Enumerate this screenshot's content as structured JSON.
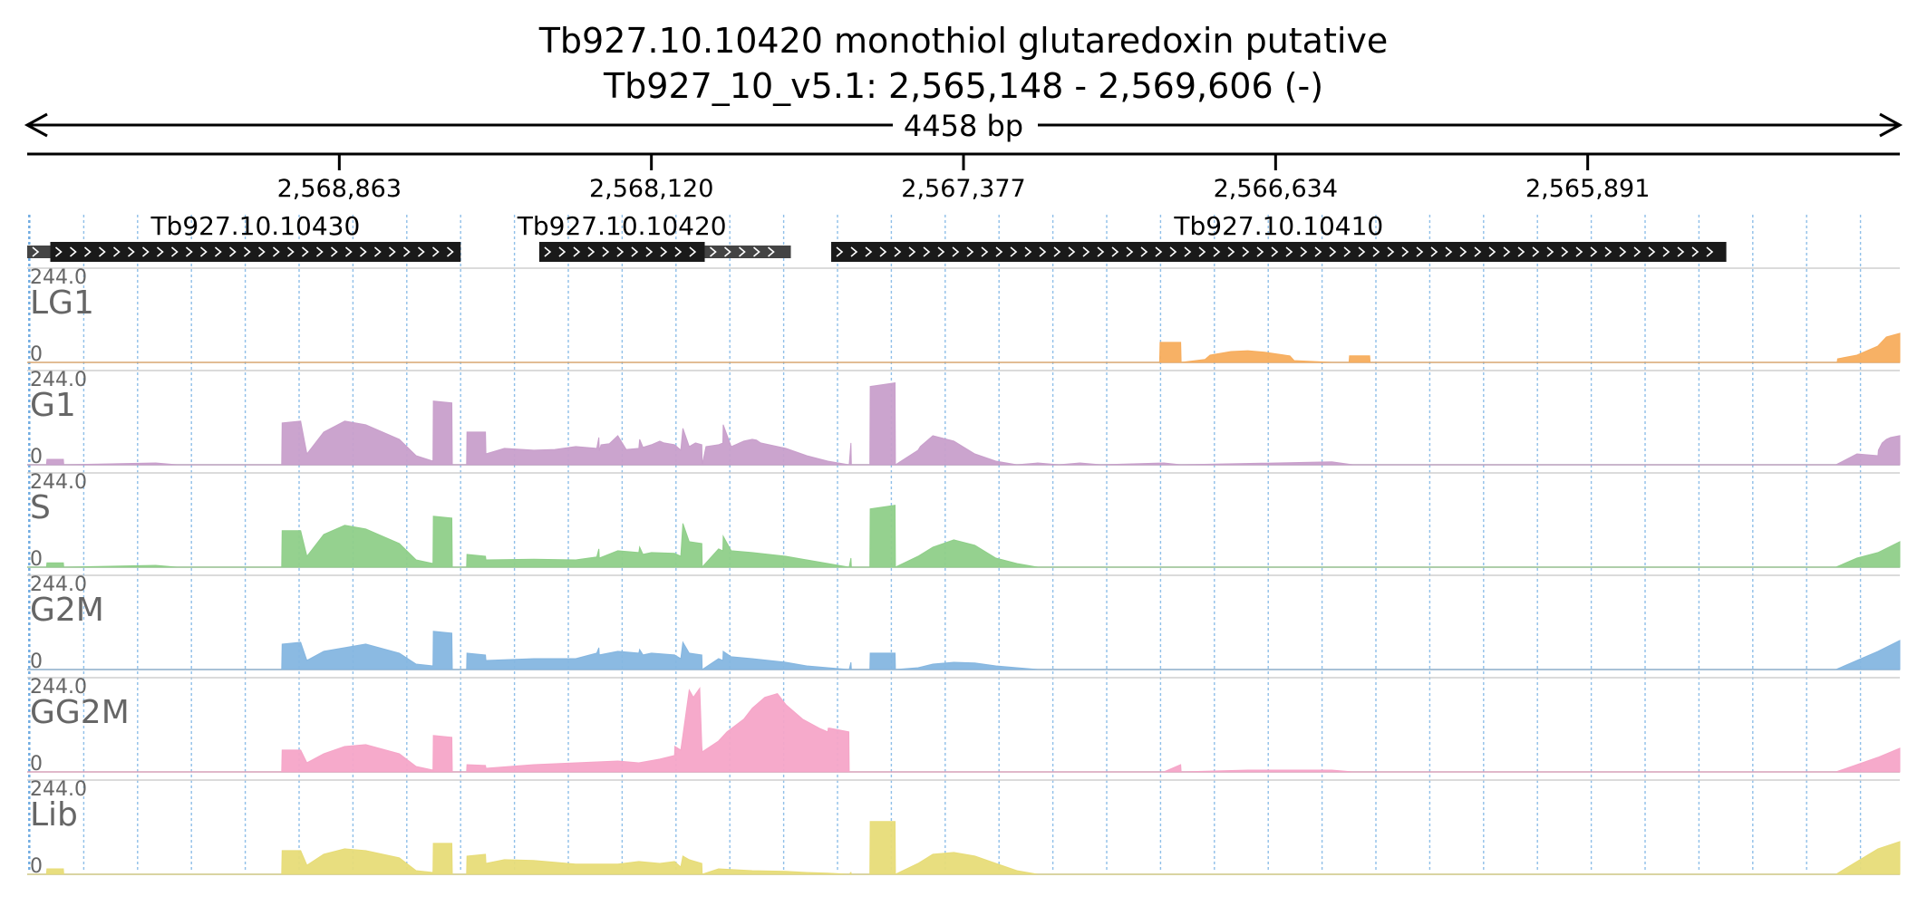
{
  "chart_data": {
    "type": "area",
    "title": "Tb927.10.10420  monothiol glutaredoxin  putative",
    "subtitle": "Tb927_10_v5.1: 2,565,148 - 2,569,606 (-)",
    "span_label": "4458 bp",
    "xlim": [
      2569606,
      2565148
    ],
    "xticks": [
      {
        "value": 2568863,
        "label": "2,568,863"
      },
      {
        "value": 2568120,
        "label": "2,568,120"
      },
      {
        "value": 2567377,
        "label": "2,567,377"
      },
      {
        "value": 2566634,
        "label": "2,566,634"
      },
      {
        "value": 2565891,
        "label": "2,565,891"
      }
    ],
    "genes": [
      {
        "name": "Tb927.10.10430",
        "start": 2569551,
        "end": 2568574,
        "thin_end": 2569606
      },
      {
        "name": "Tb927.10.10420",
        "start": 2568387,
        "end": 2567993,
        "thin_end": 2567788
      },
      {
        "name": "Tb927.10.10410",
        "start": 2567692,
        "end": 2565561
      }
    ],
    "ylim": [
      0,
      244.0
    ],
    "y_max_label": "244.0",
    "y_min_label": "0",
    "grid": true,
    "series": [
      {
        "name": "LG1",
        "color": "#f7ad5d",
        "x": [
          2569606,
          2566910,
          2566909,
          2566860,
          2566859,
          2566802,
          2566790,
          2566740,
          2566700,
          2566660,
          2566600,
          2566590,
          2566500,
          2566459,
          2566458,
          2566410,
          2566409,
          2565297,
          2565296,
          2565250,
          2565200,
          2565180,
          2565148
        ],
        "y": [
          0,
          0,
          55,
          55,
          0,
          8,
          20,
          30,
          32,
          28,
          18,
          5,
          0,
          0,
          18,
          18,
          0,
          0,
          10,
          20,
          45,
          70,
          80
        ]
      },
      {
        "name": "G1",
        "color": "#c89fcb",
        "x": [
          2569606,
          2569560,
          2569559,
          2569520,
          2569519,
          2569300,
          2569250,
          2569000,
          2568999,
          2568955,
          2568940,
          2568900,
          2568850,
          2568800,
          2568720,
          2568680,
          2568640,
          2568639,
          2568595,
          2568594,
          2568560,
          2568559,
          2568515,
          2568514,
          2568470,
          2568400,
          2568350,
          2568300,
          2568250,
          2568245,
          2568244,
          2568240,
          2568220,
          2568200,
          2568180,
          2568150,
          2568148,
          2568140,
          2568120,
          2568100,
          2568090,
          2568065,
          2568050,
          2568045,
          2568030,
          2568015,
          2568000,
          2567999,
          2567990,
          2567960,
          2567950,
          2567949,
          2567930,
          2567920,
          2567900,
          2567880,
          2567870,
          2567860,
          2567840,
          2567800,
          2567750,
          2567700,
          2567650,
          2567649,
          2567645,
          2567644,
          2567600,
          2567599,
          2567540,
          2567539,
          2567485,
          2567480,
          2567450,
          2567400,
          2567350,
          2567300,
          2567250,
          2567200,
          2567150,
          2567100,
          2567050,
          2566900,
          2566860,
          2566859,
          2566500,
          2566450,
          2565300,
          2565250,
          2565200,
          2565199,
          2565190,
          2565180,
          2565170,
          2565148
        ],
        "y": [
          0,
          0,
          15,
          15,
          0,
          5,
          0,
          0,
          115,
          120,
          30,
          90,
          120,
          110,
          70,
          25,
          10,
          175,
          170,
          0,
          0,
          90,
          90,
          30,
          45,
          40,
          42,
          50,
          45,
          75,
          38,
          55,
          58,
          80,
          42,
          45,
          70,
          48,
          55,
          65,
          60,
          55,
          40,
          100,
          50,
          60,
          55,
          0,
          50,
          55,
          60,
          110,
          50,
          55,
          65,
          70,
          68,
          60,
          55,
          45,
          25,
          10,
          0,
          0,
          60,
          0,
          0,
          215,
          225,
          0,
          40,
          50,
          80,
          65,
          30,
          10,
          0,
          5,
          0,
          5,
          0,
          5,
          0,
          0,
          8,
          0,
          0,
          30,
          25,
          40,
          60,
          70,
          75,
          80
        ]
      },
      {
        "name": "S",
        "color": "#8fcf89",
        "x": [
          2569606,
          2569560,
          2569559,
          2569520,
          2569519,
          2569300,
          2569250,
          2569000,
          2568999,
          2568955,
          2568940,
          2568900,
          2568850,
          2568800,
          2568720,
          2568680,
          2568640,
          2568639,
          2568595,
          2568594,
          2568560,
          2568559,
          2568515,
          2568514,
          2568400,
          2568300,
          2568250,
          2568245,
          2568244,
          2568200,
          2568150,
          2568148,
          2568140,
          2568120,
          2568065,
          2568050,
          2568045,
          2568030,
          2568000,
          2567999,
          2567960,
          2567950,
          2567949,
          2567930,
          2567880,
          2567800,
          2567750,
          2567700,
          2567650,
          2567649,
          2567645,
          2567644,
          2567600,
          2567599,
          2567540,
          2567539,
          2567485,
          2567450,
          2567400,
          2567350,
          2567300,
          2567250,
          2567200,
          2566900,
          2565300,
          2565250,
          2565200,
          2565148
        ],
        "y": [
          0,
          0,
          12,
          12,
          0,
          5,
          0,
          0,
          100,
          100,
          30,
          90,
          115,
          105,
          65,
          20,
          10,
          140,
          135,
          0,
          0,
          35,
          30,
          20,
          22,
          20,
          28,
          50,
          25,
          45,
          40,
          55,
          35,
          40,
          38,
          30,
          120,
          70,
          65,
          0,
          50,
          45,
          85,
          45,
          40,
          30,
          20,
          10,
          0,
          0,
          25,
          0,
          0,
          160,
          170,
          0,
          30,
          55,
          75,
          60,
          25,
          10,
          0,
          0,
          0,
          25,
          40,
          70
        ]
      },
      {
        "name": "G2M",
        "color": "#85b6e0",
        "x": [
          2569606,
          2569000,
          2568999,
          2568955,
          2568940,
          2568900,
          2568850,
          2568800,
          2568720,
          2568680,
          2568640,
          2568639,
          2568595,
          2568594,
          2568560,
          2568559,
          2568515,
          2568514,
          2568400,
          2568300,
          2568250,
          2568245,
          2568244,
          2568200,
          2568150,
          2568148,
          2568140,
          2568120,
          2568065,
          2568050,
          2568045,
          2568030,
          2568000,
          2567999,
          2567960,
          2567950,
          2567949,
          2567930,
          2567880,
          2567800,
          2567750,
          2567700,
          2567650,
          2567649,
          2567645,
          2567644,
          2567600,
          2567599,
          2567540,
          2567539,
          2567485,
          2567450,
          2567400,
          2567350,
          2567300,
          2567250,
          2567200,
          2566900,
          2565300,
          2565250,
          2565200,
          2565148
        ],
        "y": [
          0,
          0,
          70,
          75,
          25,
          50,
          60,
          70,
          45,
          15,
          10,
          105,
          100,
          0,
          0,
          45,
          40,
          25,
          30,
          30,
          45,
          60,
          40,
          50,
          45,
          55,
          40,
          45,
          40,
          30,
          75,
          45,
          40,
          0,
          30,
          25,
          50,
          35,
          30,
          20,
          10,
          5,
          0,
          0,
          20,
          0,
          0,
          45,
          45,
          0,
          5,
          15,
          20,
          18,
          10,
          5,
          0,
          0,
          0,
          25,
          50,
          80
        ]
      },
      {
        "name": "GG2M",
        "color": "#f5a5c8",
        "x": [
          2569606,
          2569000,
          2568999,
          2568955,
          2568940,
          2568900,
          2568850,
          2568800,
          2568720,
          2568680,
          2568640,
          2568639,
          2568595,
          2568594,
          2568560,
          2568559,
          2568515,
          2568514,
          2568400,
          2568300,
          2568200,
          2568150,
          2568100,
          2568065,
          2568064,
          2568050,
          2568045,
          2568030,
          2568020,
          2568005,
          2568000,
          2567999,
          2567960,
          2567940,
          2567900,
          2567880,
          2567850,
          2567820,
          2567800,
          2567760,
          2567720,
          2567700,
          2567699,
          2567695,
          2567650,
          2567649,
          2566900,
          2566860,
          2566859,
          2566700,
          2566500,
          2566450,
          2565300,
          2565250,
          2565200,
          2565148
        ],
        "y": [
          0,
          0,
          60,
          60,
          25,
          50,
          70,
          75,
          50,
          15,
          5,
          100,
          95,
          0,
          0,
          20,
          18,
          10,
          20,
          25,
          30,
          25,
          35,
          45,
          70,
          60,
          100,
          225,
          205,
          230,
          70,
          55,
          85,
          110,
          145,
          175,
          205,
          215,
          185,
          145,
          120,
          110,
          120,
          120,
          110,
          0,
          0,
          20,
          0,
          5,
          5,
          0,
          0,
          20,
          40,
          65
        ]
      },
      {
        "name": "Lib",
        "color": "#e7dc78",
        "x": [
          2569606,
          2569560,
          2569559,
          2569520,
          2569519,
          2569000,
          2568999,
          2568955,
          2568940,
          2568900,
          2568850,
          2568800,
          2568720,
          2568680,
          2568640,
          2568639,
          2568595,
          2568594,
          2568560,
          2568559,
          2568515,
          2568514,
          2568470,
          2568400,
          2568300,
          2568200,
          2568150,
          2568100,
          2568065,
          2568050,
          2568045,
          2568030,
          2568000,
          2567999,
          2567960,
          2567880,
          2567800,
          2567750,
          2567700,
          2567650,
          2567649,
          2567645,
          2567644,
          2567600,
          2567599,
          2567540,
          2567539,
          2567485,
          2567450,
          2567400,
          2567350,
          2567300,
          2567250,
          2567200,
          2566900,
          2565300,
          2565250,
          2565200,
          2565148
        ],
        "y": [
          0,
          0,
          15,
          15,
          0,
          0,
          65,
          65,
          25,
          55,
          70,
          65,
          45,
          10,
          5,
          85,
          85,
          0,
          0,
          50,
          55,
          30,
          40,
          38,
          28,
          28,
          35,
          30,
          35,
          20,
          50,
          40,
          30,
          0,
          15,
          10,
          8,
          5,
          3,
          0,
          0,
          5,
          0,
          0,
          145,
          145,
          0,
          30,
          55,
          60,
          50,
          30,
          10,
          0,
          0,
          0,
          35,
          70,
          90
        ]
      }
    ]
  }
}
